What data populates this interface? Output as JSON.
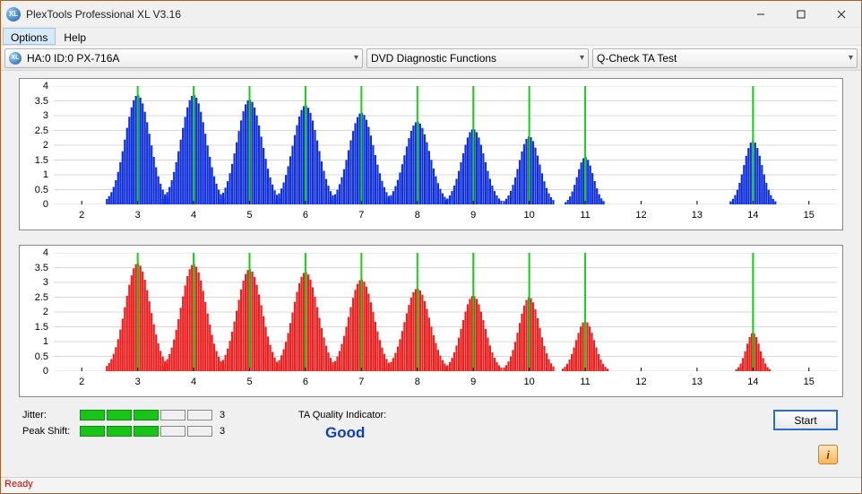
{
  "window": {
    "title": "PlexTools Professional XL V3.16"
  },
  "menu": {
    "options": "Options",
    "help": "Help"
  },
  "combos": {
    "device": "HA:0 ID:0  PX-716A",
    "func": "DVD Diagnostic Functions",
    "test": "Q-Check TA Test"
  },
  "axes": {
    "ymax": 4.0,
    "yticks": [
      0,
      0.5,
      1,
      1.5,
      2,
      2.5,
      3,
      3.5,
      4
    ],
    "xmin": 1.5,
    "xmax": 15.5,
    "xticks": [
      2,
      3,
      4,
      5,
      6,
      7,
      8,
      9,
      10,
      11,
      12,
      13,
      14,
      15
    ]
  },
  "marker_lines": [
    3,
    4,
    5,
    6,
    7,
    8,
    9,
    10,
    11,
    14
  ],
  "chart_top": {
    "bar_color": "#1030e0",
    "marker_color": "#16d016",
    "grid_color": "#d8d8d8",
    "background": "#ffffff",
    "humps": [
      {
        "c": 3,
        "h": 3.7,
        "w": 0.55
      },
      {
        "c": 4,
        "h": 3.7,
        "w": 0.55
      },
      {
        "c": 5,
        "h": 3.55,
        "w": 0.55
      },
      {
        "c": 6,
        "h": 3.35,
        "w": 0.55
      },
      {
        "c": 7,
        "h": 3.1,
        "w": 0.55
      },
      {
        "c": 8,
        "h": 2.8,
        "w": 0.55
      },
      {
        "c": 9,
        "h": 2.55,
        "w": 0.5
      },
      {
        "c": 10,
        "h": 2.3,
        "w": 0.45
      },
      {
        "c": 11,
        "h": 1.6,
        "w": 0.35
      },
      {
        "c": 14,
        "h": 2.15,
        "w": 0.4
      }
    ]
  },
  "chart_bottom": {
    "bar_color": "#ef2020",
    "marker_color": "#16d016",
    "grid_color": "#d8d8d8",
    "background": "#ffffff",
    "humps": [
      {
        "c": 3,
        "h": 3.65,
        "w": 0.55
      },
      {
        "c": 4,
        "h": 3.62,
        "w": 0.55
      },
      {
        "c": 5,
        "h": 3.45,
        "w": 0.55
      },
      {
        "c": 6,
        "h": 3.35,
        "w": 0.55
      },
      {
        "c": 7,
        "h": 3.1,
        "w": 0.55
      },
      {
        "c": 8,
        "h": 2.8,
        "w": 0.55
      },
      {
        "c": 9,
        "h": 2.55,
        "w": 0.5
      },
      {
        "c": 10,
        "h": 2.5,
        "w": 0.45
      },
      {
        "c": 11,
        "h": 1.7,
        "w": 0.4
      },
      {
        "c": 14,
        "h": 1.3,
        "w": 0.3
      }
    ]
  },
  "metrics": {
    "jitter": {
      "label": "Jitter:",
      "value": "3",
      "filled": 3,
      "total": 5
    },
    "peak": {
      "label": "Peak Shift:",
      "value": "3",
      "filled": 3,
      "total": 5
    }
  },
  "quality": {
    "label": "TA Quality Indicator:",
    "value": "Good"
  },
  "button": {
    "start": "Start"
  },
  "status": "Ready"
}
